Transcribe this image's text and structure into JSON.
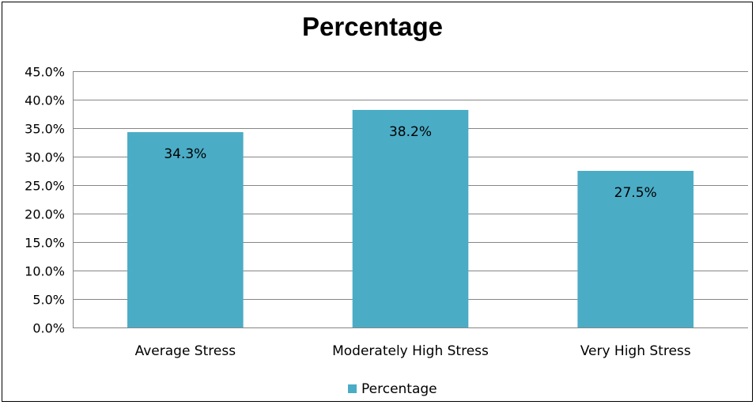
{
  "chart_data": {
    "type": "bar",
    "title": "Percentage",
    "categories": [
      "Average Stress",
      "Moderately High Stress",
      "Very High Stress"
    ],
    "series": [
      {
        "name": "Percentage",
        "values": [
          34.3,
          38.2,
          27.5
        ],
        "labels": [
          "34.3%",
          "38.2%",
          "27.5%"
        ],
        "color": "#4BACC6"
      }
    ],
    "ylim": [
      0,
      45
    ],
    "yticks": [
      "0.0%",
      "5.0%",
      "10.0%",
      "15.0%",
      "20.0%",
      "25.0%",
      "30.0%",
      "35.0%",
      "40.0%",
      "45.0%"
    ],
    "ytick_values": [
      0,
      5,
      10,
      15,
      20,
      25,
      30,
      35,
      40,
      45
    ],
    "grid": true,
    "legend_position": "bottom",
    "gridline_color": "#868686"
  }
}
